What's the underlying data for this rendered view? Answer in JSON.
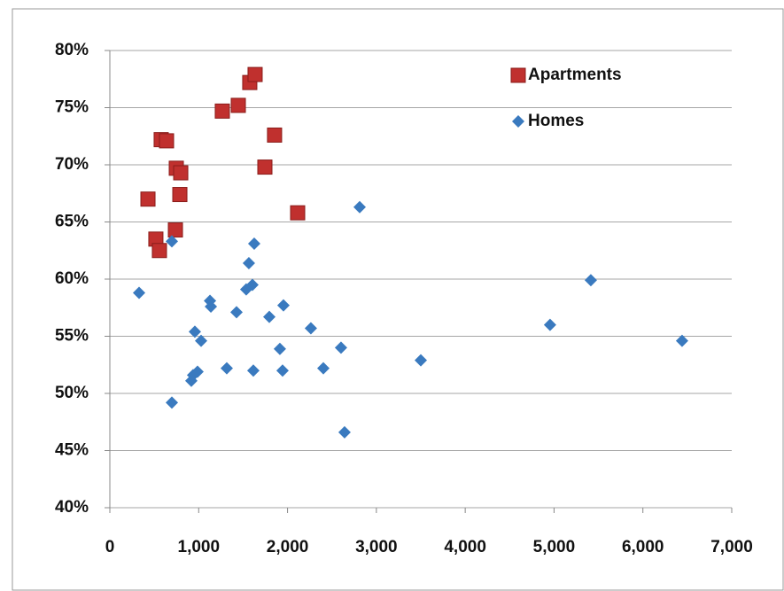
{
  "chart_data": {
    "type": "scatter",
    "series": [
      {
        "name": "Apartments",
        "color": "#c0302e",
        "marker": "square",
        "x": [
          429,
          578,
          638,
          518,
          558,
          738,
          748,
          798,
          788,
          1266,
          1446,
          1575,
          1635,
          1854,
          1745,
          2114
        ],
        "values": [
          67.0,
          72.2,
          72.1,
          63.5,
          62.5,
          64.3,
          69.7,
          69.3,
          67.4,
          74.7,
          75.2,
          77.2,
          77.9,
          72.6,
          69.8,
          65.8
        ]
      },
      {
        "name": "Homes",
        "color": "#3a7abf",
        "marker": "diamond",
        "x": [
          329,
          698,
          698,
          917,
          937,
          957,
          987,
          1027,
          1127,
          1137,
          1316,
          1426,
          1535,
          1565,
          1605,
          1625,
          1615,
          1795,
          1914,
          1944,
          1954,
          2263,
          2403,
          2602,
          2642,
          2812,
          3500,
          4955,
          5414,
          6441
        ],
        "values": [
          58.8,
          49.2,
          63.3,
          51.1,
          51.6,
          55.4,
          51.9,
          54.6,
          58.1,
          57.6,
          52.2,
          57.1,
          59.1,
          61.4,
          59.5,
          63.1,
          52.0,
          56.7,
          53.9,
          52.0,
          57.7,
          55.7,
          52.2,
          54.0,
          46.6,
          66.3,
          52.9,
          56.0,
          59.9,
          54.6
        ]
      }
    ],
    "xlim": [
      0,
      7000
    ],
    "xticks": [
      0,
      {
        "value": 1000,
        "label": "1,000"
      },
      {
        "value": 2000,
        "label": "2,000"
      },
      {
        "value": 3000,
        "label": "3,000"
      },
      {
        "value": 4000,
        "label": "4,000"
      },
      {
        "value": 5000,
        "label": "5,000"
      },
      {
        "value": 6000,
        "label": "6,000"
      },
      {
        "value": 7000,
        "label": "7,000"
      }
    ],
    "ylim": [
      40,
      80
    ],
    "yticks": [
      {
        "value": 40,
        "label": "40%"
      },
      {
        "value": 45,
        "label": "45%"
      },
      {
        "value": 50,
        "label": "50%"
      },
      {
        "value": 55,
        "label": "55%"
      },
      {
        "value": 60,
        "label": "60%"
      },
      {
        "value": 65,
        "label": "65%"
      },
      {
        "value": 70,
        "label": "70%"
      },
      {
        "value": 75,
        "label": "75%"
      },
      {
        "value": 80,
        "label": "80%"
      }
    ],
    "grid": true,
    "legend": "top-right"
  }
}
